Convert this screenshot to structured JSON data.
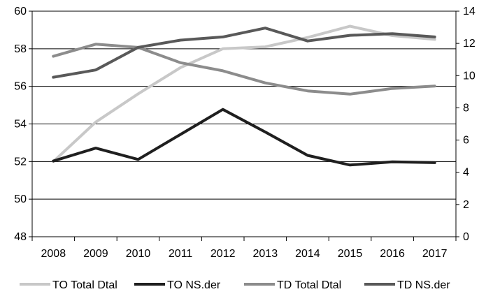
{
  "chart_data": {
    "type": "line",
    "title": "",
    "categories": [
      "2008",
      "2009",
      "2010",
      "2011",
      "2012",
      "2013",
      "2014",
      "2015",
      "2016",
      "2017"
    ],
    "y_left": {
      "min": 48,
      "max": 60,
      "ticks": [
        "48",
        "50",
        "52",
        "54",
        "56",
        "58",
        "60"
      ]
    },
    "y_right": {
      "min": 0,
      "max": 14,
      "ticks": [
        "0",
        "2",
        "4",
        "6",
        "8",
        "10",
        "12",
        "14"
      ]
    },
    "grid": true,
    "legend_position": "bottom",
    "series": [
      {
        "name": "TO Total Dtal",
        "axis": "left",
        "color": "#c8c8c8",
        "values": [
          52.0,
          54.1,
          55.6,
          57.0,
          58.0,
          58.1,
          58.6,
          59.2,
          58.7,
          58.5
        ]
      },
      {
        "name": "TO NS.der",
        "axis": "right",
        "color": "#1f1f1f",
        "values": [
          4.7,
          5.5,
          4.8,
          6.35,
          7.9,
          6.5,
          5.05,
          4.45,
          4.65,
          4.6
        ]
      },
      {
        "name": "TD Total Dtal",
        "axis": "right",
        "color": "#8c8c8c",
        "values": [
          11.2,
          11.95,
          11.75,
          10.8,
          10.3,
          9.55,
          9.05,
          8.85,
          9.2,
          9.35
        ]
      },
      {
        "name": "TD NS.der",
        "axis": "right",
        "color": "#595959",
        "values": [
          9.9,
          10.35,
          11.75,
          12.2,
          12.4,
          12.95,
          12.15,
          12.5,
          12.6,
          12.4
        ]
      }
    ]
  }
}
